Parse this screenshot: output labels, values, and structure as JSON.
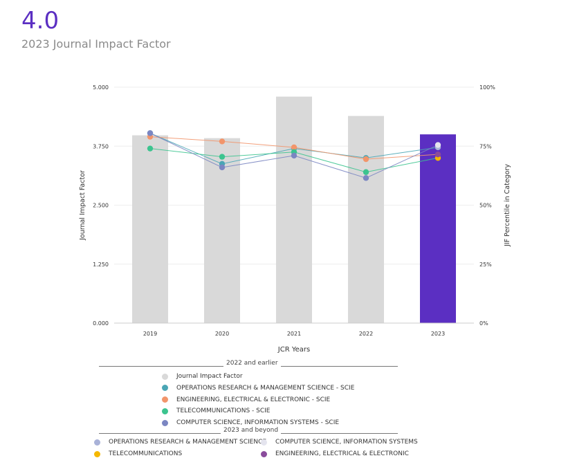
{
  "header": {
    "value": "4.0",
    "subtitle": "2023 Journal Impact Factor"
  },
  "colors": {
    "accent": "#5b2fc2",
    "bar_default": "#d9d9d9",
    "bar_highlight": "#5b2fc2"
  },
  "chart_data": {
    "type": "bar",
    "categories": [
      "2019",
      "2020",
      "2021",
      "2022",
      "2023"
    ],
    "xlabel": "JCR Years",
    "ylabel": "Journal Impact Factor",
    "y2label": "JIF Percentile in Category",
    "ylim": [
      0,
      5
    ],
    "y2lim": [
      0,
      100
    ],
    "yticks": [
      "0.000",
      "1.250",
      "2.500",
      "3.750",
      "5.000"
    ],
    "y2ticks": [
      "0%",
      "25%",
      "50%",
      "75%",
      "100%"
    ],
    "grid": true,
    "bars": {
      "name": "Journal Impact Factor",
      "values": [
        3.98,
        3.92,
        4.8,
        4.39,
        4.0
      ],
      "colors": [
        "#d9d9d9",
        "#d9d9d9",
        "#d9d9d9",
        "#d9d9d9",
        "#5b2fc2"
      ]
    },
    "series": [
      {
        "name": "OPERATIONS RESEARCH & MANAGEMENT SCIENCE - SCIE",
        "axis": "right",
        "color": "#4aa6b5",
        "values": [
          80.5,
          67.5,
          74,
          70,
          74.5
        ]
      },
      {
        "name": "ENGINEERING, ELECTRICAL & ELECTRONIC - SCIE",
        "axis": "right",
        "color": "#f2956b",
        "values": [
          79,
          77,
          74.5,
          69.5,
          71.5
        ]
      },
      {
        "name": "TELECOMMUNICATIONS - SCIE",
        "axis": "right",
        "color": "#3cc48f",
        "values": [
          74,
          70.5,
          72.5,
          64,
          70
        ]
      },
      {
        "name": "COMPUTER SCIENCE, INFORMATION SYSTEMS - SCIE",
        "axis": "right",
        "color": "#7b86c2",
        "values": [
          80.5,
          66,
          71,
          61.5,
          75.5
        ]
      }
    ],
    "points_2023": [
      {
        "name": "OPERATIONS RESEARCH & MANAGEMENT SCIENCE",
        "color": "#a9b2d8",
        "value": 74.5
      },
      {
        "name": "COMPUTER SCIENCE, INFORMATION SYSTEMS",
        "color": "#e4e4ee",
        "value": 75.5
      },
      {
        "name": "TELECOMMUNICATIONS",
        "color": "#f5b800",
        "value": 70
      },
      {
        "name": "ENGINEERING, ELECTRICAL & ELECTRONIC",
        "color": "#8a4c9c",
        "value": 71.5
      }
    ]
  },
  "legend": {
    "section1_title": "2022 and earlier",
    "section2_title": "2023 and beyond",
    "items1": [
      {
        "label": "Journal Impact Factor",
        "color": "#d9d9d9"
      },
      {
        "label": "OPERATIONS RESEARCH & MANAGEMENT SCIENCE - SCIE",
        "color": "#4aa6b5"
      },
      {
        "label": "ENGINEERING, ELECTRICAL & ELECTRONIC - SCIE",
        "color": "#f2956b"
      },
      {
        "label": "TELECOMMUNICATIONS - SCIE",
        "color": "#3cc48f"
      },
      {
        "label": "COMPUTER SCIENCE, INFORMATION SYSTEMS - SCIE",
        "color": "#7b86c2"
      }
    ],
    "items2": [
      {
        "label": "OPERATIONS RESEARCH & MANAGEMENT SCIENCE",
        "color": "#a9b2d8"
      },
      {
        "label": "COMPUTER SCIENCE, INFORMATION SYSTEMS",
        "color": "#e4e4ee"
      },
      {
        "label": "TELECOMMUNICATIONS",
        "color": "#f5b800"
      },
      {
        "label": "ENGINEERING, ELECTRICAL & ELECTRONIC",
        "color": "#8a4c9c"
      }
    ]
  }
}
